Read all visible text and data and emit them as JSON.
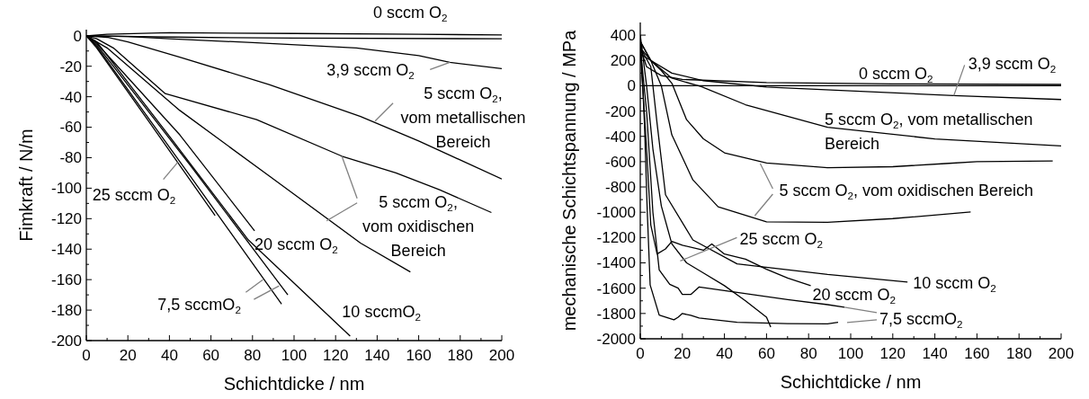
{
  "chart_data": [
    {
      "type": "line",
      "xlabel": "Schichtdicke / nm",
      "ylabel": "Fimkraft / N/m",
      "xlim": [
        0,
        200
      ],
      "ylim": [
        -200,
        4
      ],
      "xticks": [
        0,
        {
          "value": 10,
          "label": null
        },
        20,
        {
          "value": 30,
          "label": null
        },
        40,
        {
          "value": 50,
          "label": null
        },
        60,
        {
          "value": 70,
          "label": null
        },
        80,
        {
          "value": 90,
          "label": null
        },
        100,
        {
          "value": 110,
          "label": null
        },
        120,
        {
          "value": 130,
          "label": null
        },
        140,
        {
          "value": 150,
          "label": null
        },
        160,
        {
          "value": 170,
          "label": null
        },
        180,
        {
          "value": 190,
          "label": null
        },
        200
      ],
      "yticks": [
        -200,
        {
          "value": -190,
          "label": null
        },
        -180,
        {
          "value": -170,
          "label": null
        },
        -160,
        {
          "value": -150,
          "label": null
        },
        -140,
        {
          "value": -130,
          "label": null
        },
        -120,
        {
          "value": -110,
          "label": null
        },
        -100,
        {
          "value": -90,
          "label": null
        },
        -80,
        {
          "value": -70,
          "label": null
        },
        -60,
        {
          "value": -50,
          "label": null
        },
        -40,
        {
          "value": -30,
          "label": null
        },
        -20,
        {
          "value": -10,
          "label": null
        },
        0
      ],
      "grid": false,
      "marker": "none",
      "line_style": "solid",
      "series": [
        {
          "color": "#000000",
          "x": [
            0,
            10,
            40,
            100,
            160,
            200
          ],
          "values": [
            0,
            1,
            2,
            1.5,
            1,
            0.5
          ]
        },
        {
          "color": "#000000",
          "x": [
            0,
            50,
            100,
            200
          ],
          "values": [
            0,
            -1,
            -1.5,
            -2
          ]
        },
        {
          "color": "#000000",
          "x": [
            0,
            20,
            40,
            80,
            130,
            160,
            175,
            200
          ],
          "values": [
            0,
            -0.5,
            -2,
            -4.5,
            -8,
            -13,
            -17.5,
            -21.6
          ]
        },
        {
          "color": "#000000",
          "x": [
            0,
            10,
            20,
            45,
            88,
            132,
            160,
            200
          ],
          "values": [
            0,
            -1,
            -4,
            -14,
            -32,
            -53,
            -69,
            -94
          ]
        },
        {
          "color": "#000000",
          "x": [
            0,
            5,
            13,
            38,
            82,
            123,
            149,
            170,
            195
          ],
          "values": [
            0,
            -2,
            -8,
            -38,
            -55,
            -79,
            -90,
            -101,
            -116
          ]
        },
        {
          "color": "#000000",
          "x": [
            0,
            10,
            45,
            88,
            132,
            156
          ],
          "values": [
            0,
            -8,
            -49,
            -92,
            -136,
            -155
          ]
        },
        {
          "color": "#000000",
          "x": [
            0,
            5,
            40,
            78,
            127
          ],
          "values": [
            0,
            -4,
            -66,
            -134,
            -197
          ]
        },
        {
          "color": "#000000",
          "x": [
            0,
            5,
            45,
            81
          ],
          "values": [
            0,
            -5,
            -65,
            -128
          ]
        },
        {
          "color": "#000000",
          "x": [
            0,
            5,
            50,
            97
          ],
          "values": [
            0,
            -6,
            -85,
            -170
          ]
        },
        {
          "color": "#000000",
          "x": [
            0,
            5,
            50,
            94
          ],
          "values": [
            0,
            -7,
            -92,
            -176
          ]
        },
        {
          "color": "#000000",
          "x": [
            0,
            5,
            30,
            62
          ],
          "values": [
            0,
            -8,
            -56,
            -118
          ]
        }
      ],
      "annotations": [
        "0 sccm O$_{2}$",
        {
          "text": "3,9 sccm O$_{2}$",
          "x": 175,
          "y": -17.5
        },
        {
          "text": "5 sccm O$_{2}$, vom metallischen Bereich",
          "x": 139,
          "y": -56
        },
        {
          "text": "5 sccm O$_{2}$, vom oxidischen Bereich",
          "x": 123,
          "y": -79
        },
        {
          "text": "25 sccm O$_{2}$",
          "x": 44,
          "y": -83
        },
        {
          "text": "20 sccm O$_{2}$",
          "x": 81,
          "y": -128
        },
        {
          "text": "7,5 sccmO$_{2}$",
          "x": 85,
          "y": -160
        },
        {
          "text": "10 sccmO$_{2}$",
          "x": 127,
          "y": -197
        }
      ]
    },
    {
      "type": "line",
      "xlabel": "Schichtdicke / nm",
      "ylabel": "mechanische Schichtspannung / MPa",
      "xlim": [
        0,
        200
      ],
      "ylim": [
        -2000,
        500
      ],
      "xticks": [
        0,
        {
          "value": 10,
          "label": null
        },
        20,
        {
          "value": 30,
          "label": null
        },
        40,
        {
          "value": 50,
          "label": null
        },
        60,
        {
          "value": 70,
          "label": null
        },
        80,
        {
          "value": 90,
          "label": null
        },
        100,
        {
          "value": 110,
          "label": null
        },
        120,
        {
          "value": 130,
          "label": null
        },
        140,
        {
          "value": 150,
          "label": null
        },
        160,
        {
          "value": 170,
          "label": null
        },
        180,
        {
          "value": 190,
          "label": null
        },
        200
      ],
      "yticks": [
        -2000,
        {
          "value": -1900,
          "label": null
        },
        -1800,
        {
          "value": -1700,
          "label": null
        },
        -1600,
        {
          "value": -1500,
          "label": null
        },
        -1400,
        {
          "value": -1300,
          "label": null
        },
        -1200,
        {
          "value": -1100,
          "label": null
        },
        -1000,
        {
          "value": -900,
          "label": null
        },
        -800,
        {
          "value": -700,
          "label": null
        },
        -600,
        {
          "value": -500,
          "label": null
        },
        -400,
        {
          "value": -300,
          "label": null
        },
        -200,
        {
          "value": -100,
          "label": null
        },
        0,
        {
          "value": 100,
          "label": null
        },
        200,
        {
          "value": 300,
          "label": null
        },
        400
      ],
      "grid": false,
      "marker": "none",
      "line_style": "solid",
      "series": [
        {
          "color": "#000000",
          "x": [
            0,
            3,
            10,
            20,
            60,
            120,
            200
          ],
          "values": [
            300,
            150,
            80,
            50,
            25,
            15,
            10
          ]
        },
        {
          "color": "#000000",
          "x": [
            1,
            50,
            200
          ],
          "values": [
            0,
            0,
            0
          ]
        },
        {
          "color": "#000000",
          "x": [
            0,
            5,
            15,
            30,
            60,
            100,
            149,
            200
          ],
          "values": [
            250,
            200,
            100,
            40,
            -10,
            -40,
            -78,
            -109
          ]
        },
        {
          "color": "#000000",
          "x": [
            0,
            5,
            15,
            29,
            50,
            89,
            140,
            200
          ],
          "values": [
            300,
            200,
            60,
            -7,
            -150,
            -328,
            -420,
            -475
          ]
        },
        {
          "color": "#000000",
          "x": [
            0,
            5,
            10,
            15,
            22,
            30,
            40,
            60,
            89,
            120,
            145,
            160,
            196
          ],
          "values": [
            350,
            200,
            120,
            20,
            -268,
            -420,
            -530,
            -610,
            -648,
            -640,
            -615,
            -600,
            -594
          ]
        },
        {
          "color": "#000000",
          "x": [
            0,
            5,
            10,
            15,
            25,
            37,
            60,
            89,
            120,
            157
          ],
          "values": [
            350,
            200,
            0,
            -388,
            -744,
            -957,
            -1076,
            -1080,
            -1050,
            -998
          ]
        },
        {
          "color": "#000000",
          "x": [
            0,
            5,
            8,
            12,
            25,
            46,
            89,
            127
          ],
          "values": [
            300,
            150,
            -300,
            -862,
            -1219,
            -1408,
            -1492,
            -1551
          ]
        },
        {
          "color": "#000000",
          "x": [
            0,
            3,
            5,
            8,
            12,
            15,
            20,
            30,
            34,
            40,
            50,
            60,
            70,
            81
          ],
          "values": [
            300,
            -500,
            -1100,
            -1330,
            -1290,
            -1230,
            -1260,
            -1300,
            -1250,
            -1330,
            -1370,
            -1450,
            -1520,
            -1580
          ]
        },
        {
          "color": "#000000",
          "x": [
            0,
            3,
            6,
            9,
            14,
            18,
            20,
            24,
            28,
            46,
            70,
            89,
            97
          ],
          "values": [
            300,
            -200,
            -1000,
            -1456,
            -1570,
            -1600,
            -1650,
            -1650,
            -1590,
            -1634,
            -1690,
            -1730,
            -1750
          ]
        },
        {
          "color": "#000000",
          "x": [
            0,
            2,
            3.3,
            4.7,
            9,
            16,
            18,
            20,
            24,
            28,
            46,
            70,
            89,
            94
          ],
          "values": [
            400,
            -300,
            -981,
            -1575,
            -1813,
            -1850,
            -1830,
            -1800,
            -1815,
            -1836,
            -1870,
            -1880,
            -1882,
            -1870
          ]
        },
        {
          "color": "#000000",
          "x": [
            0,
            3,
            6,
            10,
            15,
            22,
            30,
            40,
            50,
            60,
            62
          ],
          "values": [
            400,
            0,
            -500,
            -950,
            -1250,
            -1400,
            -1480,
            -1580,
            -1700,
            -1830,
            -1907
          ]
        }
      ],
      "annotations": [
        "0 sccm O$_{2}$",
        {
          "text": "3,9 sccm O$_{2}$",
          "x": 149,
          "y": -78
        },
        "5 sccm O$_{2}$, vom metallischen Bereich",
        {
          "text": "5 sccm O$_{2}$, vom oxidischen Bereich",
          "x": 57,
          "y": -615
        },
        {
          "text": "25 sccm O$_{2}$",
          "x": 19,
          "y": -1385
        },
        {
          "text": "10 sccm O$_{2}$",
          "x": 127,
          "y": -1551
        },
        {
          "text": "20 sccm O$_{2}$",
          "x": 81,
          "y": -1580
        },
        {
          "text": "7,5 sccmO$_{2}$",
          "x": 97,
          "y": -1750
        }
      ]
    }
  ]
}
